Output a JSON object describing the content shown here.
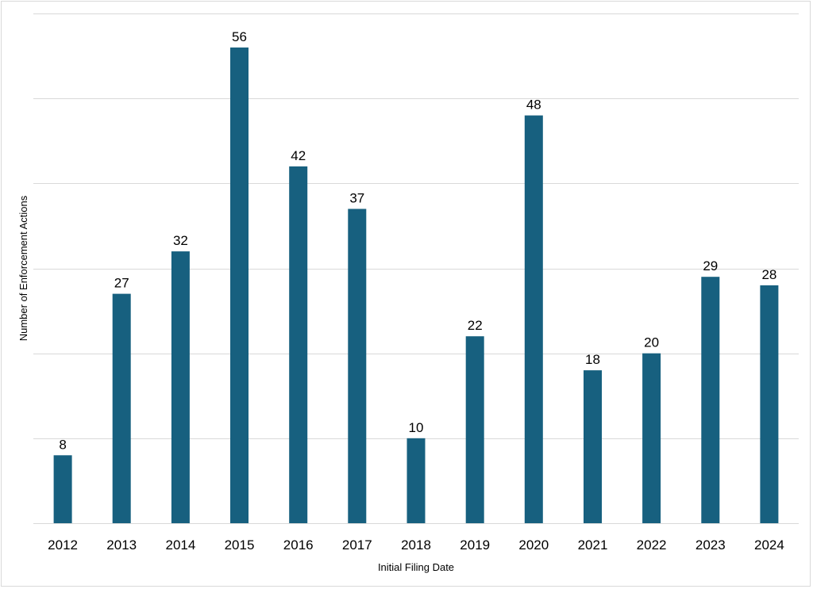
{
  "chart_data": {
    "type": "bar",
    "categories": [
      "2012",
      "2013",
      "2014",
      "2015",
      "2016",
      "2017",
      "2018",
      "2019",
      "2020",
      "2021",
      "2022",
      "2023",
      "2024"
    ],
    "values": [
      8,
      27,
      32,
      56,
      42,
      37,
      10,
      22,
      48,
      18,
      20,
      29,
      28
    ],
    "title": "",
    "xlabel": "Initial Filing Date",
    "ylabel": "Number of Enforcement Actions",
    "ylim": [
      0,
      60
    ],
    "grid": true,
    "gridlines_y": [
      0,
      10,
      20,
      30,
      40,
      50,
      60
    ],
    "data_labels": true,
    "legend": "none",
    "bar_color": "#17607f"
  }
}
